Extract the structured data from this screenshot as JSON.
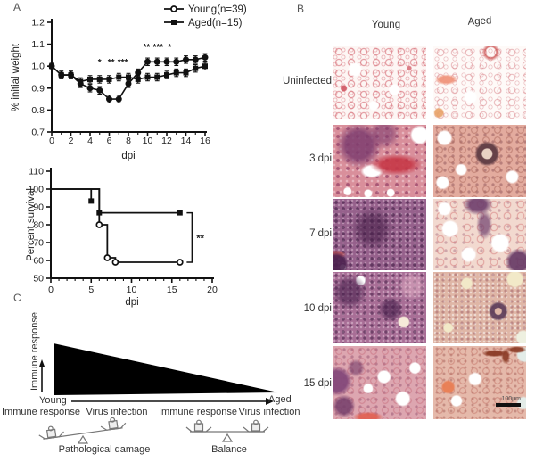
{
  "panel_a": {
    "label": "A"
  },
  "panel_b": {
    "label": "B",
    "columns": [
      "Young",
      "Aged"
    ],
    "rows": [
      "Uninfected",
      "3 dpi",
      "7 dpi",
      "10 dpi",
      "15 dpi"
    ],
    "scale_bar_label": "100μm"
  },
  "panel_c": {
    "label": "C",
    "axis_label": "Immune response",
    "x_start_label": "Young",
    "x_end_label": "Aged",
    "scales": [
      {
        "left_label": "Immune response",
        "right_label": "Virus infection",
        "caption": "Pathological damage",
        "state": "tilted-left-down"
      },
      {
        "left_label": "Immune response",
        "right_label": "Virus infection",
        "caption": "Balance",
        "state": "balanced"
      }
    ]
  },
  "chart_data": [
    {
      "id": "weight",
      "type": "line",
      "xlabel": "dpi",
      "ylabel": "% initial weight",
      "xlim": [
        0,
        16
      ],
      "xticks": [
        0,
        2,
        4,
        6,
        8,
        10,
        12,
        14,
        16
      ],
      "minor_x": 1,
      "ylim": [
        0.7,
        1.2
      ],
      "yticks": [
        "0.7",
        "0.8",
        "0.9",
        "1.0",
        "1.1",
        "1.2"
      ],
      "legend_position": "top-right",
      "series": [
        {
          "name": "Young(n=39)",
          "marker": "circle",
          "err": 0.013,
          "values": [
            1.0,
            0.96,
            0.96,
            0.92,
            0.9,
            0.89,
            0.85,
            0.85,
            0.92,
            0.97,
            1.02,
            1.02,
            1.02,
            1.02,
            1.03,
            1.03,
            1.04
          ]
        },
        {
          "name": "Aged(n=15)",
          "marker": "square",
          "err": 0.013,
          "values": [
            1.0,
            0.96,
            0.96,
            0.93,
            0.94,
            0.94,
            0.94,
            0.95,
            0.95,
            0.94,
            0.95,
            0.95,
            0.96,
            0.97,
            0.97,
            0.99,
            1.0
          ]
        }
      ],
      "annotations": [
        {
          "text": "*",
          "x": 5.0,
          "y": 1.005
        },
        {
          "text": "**",
          "x": 6.2,
          "y": 1.005
        },
        {
          "text": "***",
          "x": 7.4,
          "y": 1.005
        },
        {
          "text": "**",
          "x": 9.9,
          "y": 1.075
        },
        {
          "text": "***",
          "x": 11.1,
          "y": 1.075
        },
        {
          "text": "*",
          "x": 12.3,
          "y": 1.075
        }
      ]
    },
    {
      "id": "survival",
      "type": "step",
      "xlabel": "dpi",
      "ylabel": "Percent survival",
      "xlim": [
        0,
        20
      ],
      "xticks": [
        0,
        5,
        10,
        15,
        20
      ],
      "minor_x": 1,
      "ylim": [
        50,
        110
      ],
      "yticks": [
        50,
        60,
        70,
        80,
        90,
        100,
        110
      ],
      "series": [
        {
          "name": "Aged(n=15)",
          "marker": "square",
          "open": false,
          "points": [
            [
              0,
              100
            ],
            [
              6,
              100
            ],
            [
              6,
              86.7
            ],
            [
              16,
              86.7
            ]
          ],
          "extra_segments": [
            [
              [
                5,
                100
              ],
              [
                5,
                93.3
              ]
            ]
          ],
          "markers_at": [
            [
              5,
              93.3
            ],
            [
              6,
              86.7
            ],
            [
              16,
              86.7
            ]
          ]
        },
        {
          "name": "Young(n=39)",
          "marker": "circle",
          "open": true,
          "points": [
            [
              0,
              100
            ],
            [
              6,
              100
            ],
            [
              6,
              80
            ],
            [
              7,
              80
            ],
            [
              7,
              61.5
            ],
            [
              8,
              61.5
            ],
            [
              8,
              59
            ],
            [
              16,
              59
            ]
          ],
          "extra_segments": [],
          "markers_at": [
            [
              6,
              80
            ],
            [
              7,
              61.5
            ],
            [
              8,
              59
            ],
            [
              16,
              59
            ]
          ]
        }
      ],
      "significance": {
        "text": "**",
        "x": 17.5,
        "top": 86.7,
        "bottom": 59
      }
    }
  ]
}
